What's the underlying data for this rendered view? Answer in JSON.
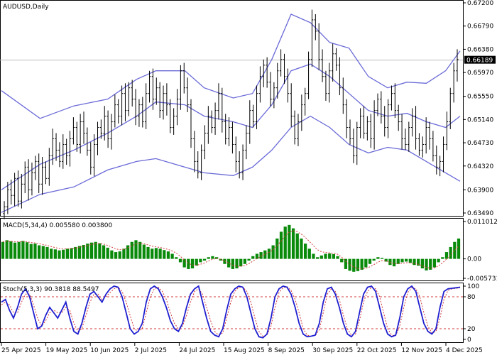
{
  "chart_data": {
    "type": "candlestick",
    "symbol_label": "AUDUSD,Daily",
    "current_price_label": "0.66189",
    "current_price": 0.66189,
    "price_axis": {
      "ylim": [
        0.6349,
        0.672
      ],
      "ticks": [
        "0.67200",
        "0.66790",
        "0.66380",
        "0.65970",
        "0.65550",
        "0.65140",
        "0.64730",
        "0.64320",
        "0.63900",
        "0.63490"
      ]
    },
    "x_tick_labels": [
      "25 Apr 2025",
      "19 May 2025",
      "10 Jun 2025",
      "2 Jul 2025",
      "24 Jul 2025",
      "15 Aug 2025",
      "8 Sep 2025",
      "30 Sep 2025",
      "22 Oct 2025",
      "12 Nov 2025",
      "4 Dec 2025"
    ],
    "bollinger": {
      "upper": [
        [
          0,
          0.6565
        ],
        [
          16,
          0.6516
        ],
        [
          30,
          0.6538
        ],
        [
          44,
          0.655
        ],
        [
          56,
          0.6585
        ],
        [
          64,
          0.66
        ],
        [
          76,
          0.66
        ],
        [
          84,
          0.657
        ],
        [
          96,
          0.6552
        ],
        [
          104,
          0.656
        ],
        [
          112,
          0.662
        ],
        [
          120,
          0.67
        ],
        [
          128,
          0.6685
        ],
        [
          136,
          0.665
        ],
        [
          144,
          0.664
        ],
        [
          152,
          0.659
        ],
        [
          160,
          0.657
        ],
        [
          168,
          0.658
        ],
        [
          176,
          0.6578
        ],
        [
          184,
          0.66
        ],
        [
          190,
          0.6635
        ]
      ],
      "middle": [
        [
          0,
          0.639
        ],
        [
          16,
          0.6435
        ],
        [
          30,
          0.646
        ],
        [
          44,
          0.649
        ],
        [
          56,
          0.652
        ],
        [
          64,
          0.6545
        ],
        [
          76,
          0.654
        ],
        [
          84,
          0.652
        ],
        [
          96,
          0.651
        ],
        [
          104,
          0.65
        ],
        [
          112,
          0.654
        ],
        [
          120,
          0.66
        ],
        [
          128,
          0.6612
        ],
        [
          136,
          0.659
        ],
        [
          144,
          0.656
        ],
        [
          152,
          0.653
        ],
        [
          160,
          0.652
        ],
        [
          168,
          0.6525
        ],
        [
          176,
          0.651
        ],
        [
          184,
          0.65
        ],
        [
          190,
          0.652
        ]
      ],
      "lower": [
        [
          0,
          0.635
        ],
        [
          16,
          0.6382
        ],
        [
          30,
          0.6395
        ],
        [
          44,
          0.6425
        ],
        [
          56,
          0.644
        ],
        [
          64,
          0.6445
        ],
        [
          76,
          0.643
        ],
        [
          84,
          0.642
        ],
        [
          96,
          0.6415
        ],
        [
          104,
          0.643
        ],
        [
          112,
          0.646
        ],
        [
          120,
          0.65
        ],
        [
          128,
          0.652
        ],
        [
          136,
          0.65
        ],
        [
          144,
          0.647
        ],
        [
          152,
          0.6455
        ],
        [
          160,
          0.6465
        ],
        [
          168,
          0.646
        ],
        [
          176,
          0.644
        ],
        [
          184,
          0.642
        ],
        [
          190,
          0.6405
        ]
      ]
    },
    "closes": [
      0.636,
      0.639,
      0.638,
      0.641,
      0.637,
      0.64,
      0.643,
      0.639,
      0.642,
      0.644,
      0.64,
      0.643,
      0.641,
      0.645,
      0.648,
      0.646,
      0.644,
      0.647,
      0.645,
      0.648,
      0.65,
      0.647,
      0.651,
      0.649,
      0.646,
      0.643,
      0.647,
      0.65,
      0.649,
      0.652,
      0.648,
      0.651,
      0.654,
      0.652,
      0.656,
      0.653,
      0.657,
      0.655,
      0.652,
      0.654,
      0.651,
      0.656,
      0.659,
      0.655,
      0.657,
      0.653,
      0.656,
      0.654,
      0.65,
      0.652,
      0.655,
      0.66,
      0.657,
      0.654,
      0.648,
      0.644,
      0.642,
      0.646,
      0.649,
      0.652,
      0.65,
      0.653,
      0.656,
      0.651,
      0.648,
      0.65,
      0.647,
      0.644,
      0.642,
      0.646,
      0.649,
      0.653,
      0.651,
      0.656,
      0.659,
      0.661,
      0.658,
      0.655,
      0.657,
      0.66,
      0.662,
      0.659,
      0.656,
      0.652,
      0.648,
      0.651,
      0.654,
      0.656,
      0.662,
      0.669,
      0.667,
      0.662,
      0.659,
      0.656,
      0.66,
      0.663,
      0.661,
      0.657,
      0.654,
      0.65,
      0.648,
      0.645,
      0.65,
      0.652,
      0.649,
      0.651,
      0.648,
      0.653,
      0.655,
      0.652,
      0.65,
      0.654,
      0.656,
      0.653,
      0.651,
      0.648,
      0.647,
      0.65,
      0.652,
      0.648,
      0.646,
      0.647,
      0.65,
      0.648,
      0.645,
      0.643,
      0.644,
      0.647,
      0.651,
      0.656,
      0.66,
      0.662
    ],
    "macd": {
      "label": "MACD(5,34,4) 0.005580 0.003800",
      "ylim": [
        -0.005731,
        0.011012
      ],
      "ticks": [
        "0.011012",
        "0.00",
        "-0.005731"
      ],
      "histogram": [
        0.005,
        0.0055,
        0.0052,
        0.0048,
        0.005,
        0.0053,
        0.0049,
        0.0044,
        0.0045,
        0.004,
        0.0038,
        0.0035,
        0.003,
        0.0028,
        0.0025,
        0.0027,
        0.003,
        0.0032,
        0.0035,
        0.0038,
        0.0041,
        0.0045,
        0.0048,
        0.005,
        0.0046,
        0.004,
        0.0033,
        0.0025,
        0.002,
        0.0022,
        0.003,
        0.004,
        0.005,
        0.0055,
        0.005,
        0.0042,
        0.0035,
        0.003,
        0.0032,
        0.003,
        0.0026,
        0.0022,
        0.0015,
        0.0005,
        -0.001,
        -0.0025,
        -0.003,
        -0.0028,
        -0.002,
        -0.001,
        -0.0005,
        0.0005,
        0.0008,
        0.0005,
        -0.0005,
        -0.0015,
        -0.0025,
        -0.003,
        -0.0028,
        -0.0022,
        -0.0015,
        -0.0005,
        0.0008,
        0.0015,
        0.002,
        0.0025,
        0.003,
        0.004,
        0.006,
        0.008,
        0.0095,
        0.01,
        0.009,
        0.0075,
        0.006,
        0.0045,
        0.003,
        0.0015,
        0.0005,
        0.001,
        0.0015,
        0.0016,
        0.0014,
        0.0008,
        -0.001,
        -0.003,
        -0.0035,
        -0.0038,
        -0.0036,
        -0.0032,
        -0.0025,
        -0.0015,
        -0.0005,
        0.0005,
        0.0003,
        -0.0008,
        -0.0018,
        -0.0022,
        -0.0015,
        -0.001,
        -0.0008,
        -0.0012,
        -0.0018,
        -0.002,
        -0.0028,
        -0.0034,
        -0.0032,
        -0.0025,
        -0.001,
        0.0005,
        0.002,
        0.0035,
        0.005,
        0.006
      ]
    },
    "stochastic": {
      "label": "Stoch(5,3,3) 90.3818 88.5497",
      "ylim": [
        0,
        100
      ],
      "ticks": [
        "100",
        "80",
        "20",
        "0"
      ],
      "levels": [
        80,
        20
      ],
      "k": [
        70,
        75,
        55,
        40,
        60,
        85,
        95,
        80,
        50,
        20,
        25,
        45,
        60,
        50,
        40,
        55,
        70,
        40,
        15,
        10,
        30,
        60,
        85,
        90,
        80,
        70,
        85,
        95,
        100,
        98,
        80,
        50,
        20,
        10,
        15,
        30,
        70,
        95,
        100,
        95,
        80,
        60,
        35,
        20,
        15,
        30,
        60,
        85,
        95,
        100,
        70,
        40,
        15,
        8,
        5,
        20,
        55,
        85,
        95,
        100,
        98,
        80,
        50,
        20,
        5,
        3,
        10,
        40,
        80,
        95,
        100,
        98,
        85,
        60,
        30,
        10,
        5,
        6,
        8,
        30,
        70,
        95,
        98,
        85,
        60,
        30,
        10,
        5,
        15,
        50,
        85,
        98,
        100,
        90,
        60,
        30,
        10,
        5,
        8,
        40,
        80,
        95,
        100,
        90,
        60,
        30,
        15,
        10,
        20,
        60,
        90,
        95,
        96,
        97,
        98
      ],
      "d": [
        65,
        70,
        65,
        50,
        50,
        70,
        85,
        85,
        65,
        40,
        25,
        35,
        50,
        55,
        50,
        50,
        60,
        55,
        30,
        15,
        20,
        45,
        70,
        85,
        85,
        75,
        80,
        88,
        95,
        98,
        90,
        70,
        45,
        20,
        15,
        20,
        50,
        80,
        95,
        98,
        90,
        75,
        50,
        30,
        20,
        25,
        45,
        70,
        90,
        95,
        85,
        60,
        35,
        15,
        8,
        12,
        40,
        70,
        90,
        98,
        98,
        90,
        70,
        40,
        15,
        6,
        8,
        25,
        60,
        88,
        97,
        99,
        92,
        75,
        50,
        20,
        8,
        6,
        7,
        18,
        50,
        85,
        95,
        90,
        75,
        45,
        20,
        8,
        10,
        35,
        70,
        90,
        98,
        95,
        80,
        50,
        20,
        8,
        7,
        25,
        60,
        88,
        97,
        95,
        80,
        50,
        25,
        12,
        15,
        40,
        75,
        92,
        95,
        96,
        97
      ]
    }
  }
}
